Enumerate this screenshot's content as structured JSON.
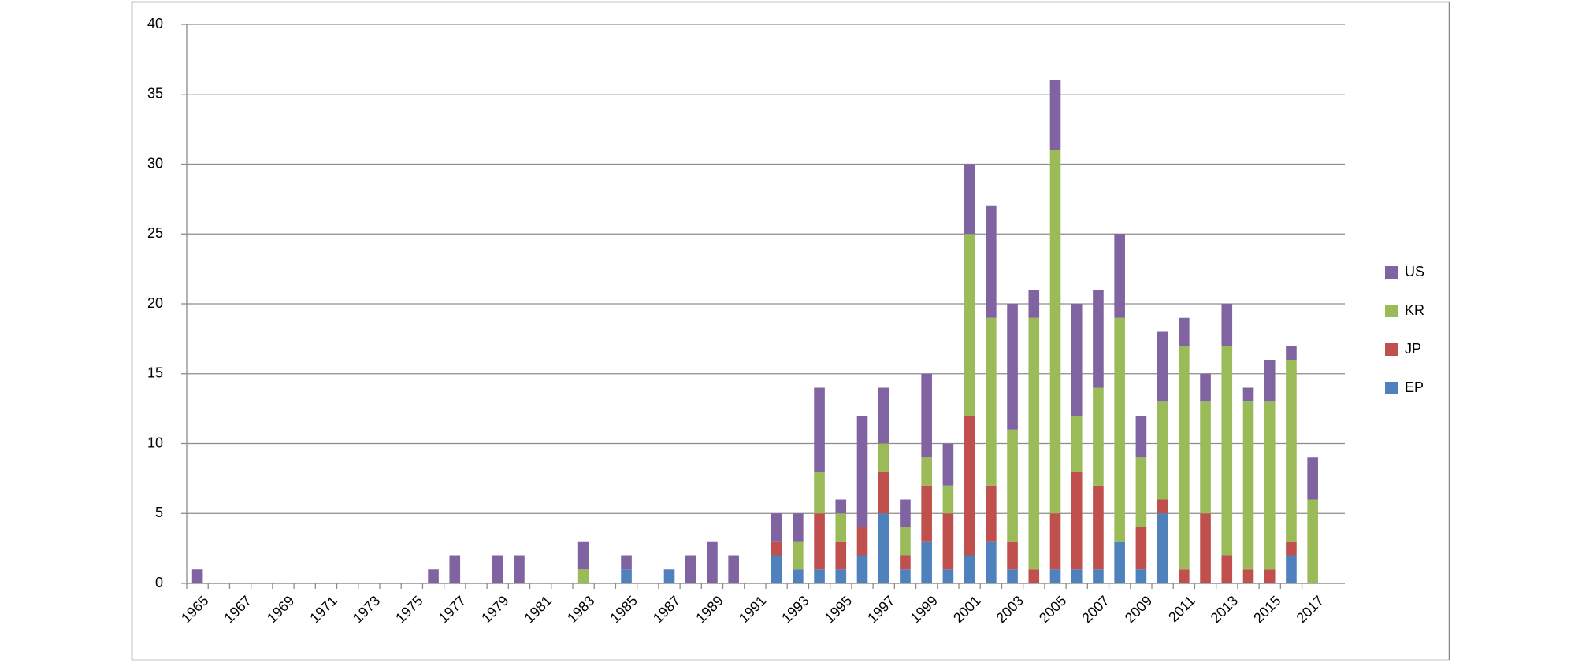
{
  "chart_data": {
    "type": "stacked_bar",
    "categories": [
      "1965",
      null,
      "1967",
      null,
      "1969",
      null,
      "1971",
      null,
      "1973",
      null,
      "1975",
      null,
      "1977",
      null,
      "1979",
      null,
      "1981",
      null,
      "1983",
      null,
      "1985",
      null,
      "1987",
      null,
      "1989",
      null,
      "1991",
      null,
      "1993",
      null,
      "1995",
      null,
      "1997",
      null,
      "1999",
      null,
      "2001",
      null,
      "2003",
      null,
      "2005",
      null,
      "2007",
      null,
      "2009",
      null,
      "2011",
      null,
      "2013",
      null,
      "2015",
      null,
      "2017"
    ],
    "series": [
      {
        "name": "EP",
        "color": "#4f81bd",
        "values": [
          0,
          0,
          0,
          0,
          0,
          0,
          0,
          0,
          0,
          0,
          0,
          0,
          0,
          0,
          0,
          0,
          0,
          0,
          0,
          0,
          1,
          0,
          1,
          0,
          0,
          0,
          0,
          2,
          1,
          1,
          1,
          2,
          5,
          1,
          3,
          1,
          2,
          3,
          1,
          0,
          1,
          1,
          1,
          3,
          1,
          5,
          0,
          0,
          0,
          0,
          0,
          2,
          0
        ]
      },
      {
        "name": "JP",
        "color": "#c0504d",
        "values": [
          0,
          0,
          0,
          0,
          0,
          0,
          0,
          0,
          0,
          0,
          0,
          0,
          0,
          0,
          0,
          0,
          0,
          0,
          0,
          0,
          0,
          0,
          0,
          0,
          0,
          0,
          0,
          1,
          0,
          4,
          2,
          2,
          3,
          1,
          4,
          4,
          10,
          4,
          2,
          1,
          4,
          7,
          6,
          0,
          3,
          1,
          1,
          5,
          2,
          1,
          1,
          1,
          0
        ]
      },
      {
        "name": "KR",
        "color": "#9bbb59",
        "values": [
          0,
          0,
          0,
          0,
          0,
          0,
          0,
          0,
          0,
          0,
          0,
          0,
          0,
          0,
          0,
          0,
          0,
          0,
          1,
          0,
          0,
          0,
          0,
          0,
          0,
          0,
          0,
          0,
          2,
          3,
          2,
          0,
          2,
          2,
          2,
          2,
          13,
          12,
          8,
          18,
          26,
          4,
          7,
          16,
          5,
          7,
          16,
          8,
          15,
          12,
          12,
          13,
          6
        ]
      },
      {
        "name": "US",
        "color": "#8064a2",
        "values": [
          1,
          0,
          0,
          0,
          0,
          0,
          0,
          0,
          0,
          0,
          0,
          1,
          2,
          0,
          2,
          2,
          0,
          0,
          2,
          0,
          1,
          0,
          0,
          2,
          3,
          2,
          0,
          2,
          2,
          6,
          1,
          8,
          4,
          2,
          6,
          3,
          5,
          8,
          9,
          2,
          5,
          8,
          7,
          6,
          3,
          5,
          2,
          2,
          3,
          1,
          3,
          1,
          3
        ]
      }
    ],
    "ylim": [
      0,
      40
    ],
    "yticks": [
      0,
      5,
      10,
      15,
      20,
      25,
      30,
      35,
      40
    ],
    "grid": true,
    "legend": "right"
  }
}
